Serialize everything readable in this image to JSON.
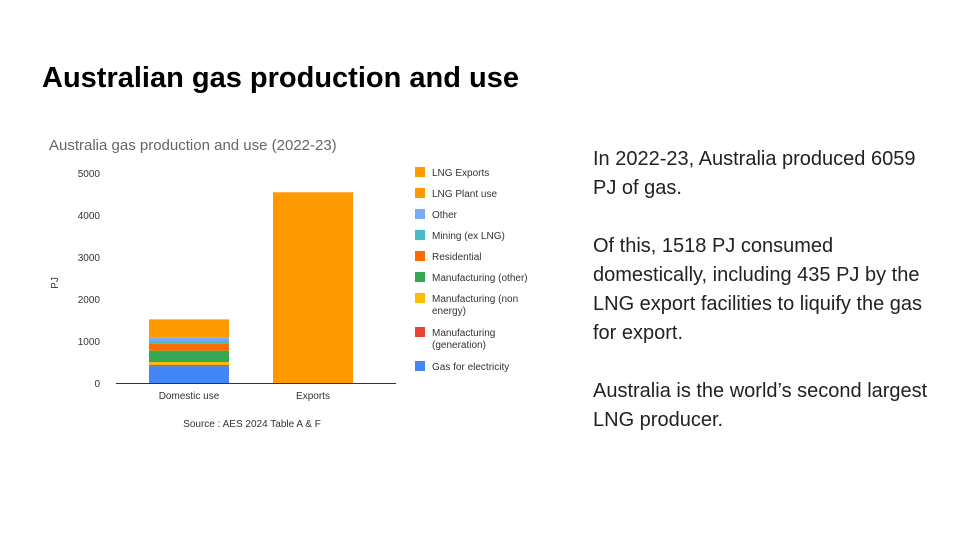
{
  "slide": {
    "title": "Australian gas production and use"
  },
  "body": {
    "paragraphs": [
      "In 2022-23, Australia produced 6059 PJ of gas.",
      "Of this, 1518 PJ consumed domestically, including 435 PJ by the LNG export facilities to liquify the gas for export.",
      "Australia is the world’s second largest LNG producer."
    ]
  },
  "chart_data": {
    "type": "bar",
    "stacked": true,
    "title": "Australia gas production and use (2022-23)",
    "subtitle": "",
    "xlabel": "",
    "ylabel": "PJ",
    "ylim": [
      0,
      5000
    ],
    "yticks": [
      0,
      1000,
      2000,
      3000,
      4000,
      5000
    ],
    "categories": [
      "Domestic use",
      "Exports"
    ],
    "grid": false,
    "legend_position": "right",
    "source": "Source : AES 2024  Table A & F",
    "series": [
      {
        "name": "Gas  for electricity",
        "color": "#4285f4",
        "values": [
          400,
          0
        ]
      },
      {
        "name": "Manufacturing (generation)",
        "color": "#ea4335",
        "values": [
          30,
          0
        ]
      },
      {
        "name": "Manufacturing (non energy)",
        "color": "#fbbc04",
        "values": [
          70,
          0
        ]
      },
      {
        "name": "Manufacturing (other)",
        "color": "#34a853",
        "values": [
          270,
          0
        ]
      },
      {
        "name": "Residential",
        "color": "#ff6d01",
        "values": [
          160,
          0
        ]
      },
      {
        "name": "Mining (ex LNG)",
        "color": "#46bdc6",
        "values": [
          70,
          0
        ]
      },
      {
        "name": "Other",
        "color": "#7baaf7",
        "values": [
          80,
          0
        ]
      },
      {
        "name": "LNG Plant use",
        "color": "#ff9900",
        "values": [
          435,
          0
        ]
      },
      {
        "name": "LNG Exports",
        "color": "#ff9900",
        "values": [
          0,
          4541
        ]
      }
    ]
  }
}
